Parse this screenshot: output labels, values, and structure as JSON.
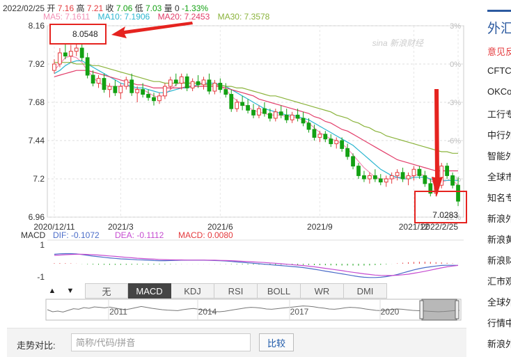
{
  "header": {
    "date": "2022/02/25",
    "open_label": "开",
    "open": "7.16",
    "high_label": "高",
    "high": "7.21",
    "close_label": "收",
    "close": "7.06",
    "low_label": "低",
    "low": "7.03",
    "volume_label": "量",
    "volume": "0",
    "change": "-1.33%"
  },
  "ma_legend": [
    {
      "label": "MA5: 7.1611",
      "color": "#f28fb5"
    },
    {
      "label": "MA10: 7.1906",
      "color": "#2bb6d0"
    },
    {
      "label": "MA20: 7.2453",
      "color": "#e23d6a"
    },
    {
      "label": "MA30: 7.3578",
      "color": "#8ab33b"
    }
  ],
  "watermark": "sina 新浪财经",
  "annotations": {
    "high": "8.0548",
    "low": "7.0283"
  },
  "macd_legend": {
    "name": "MACD",
    "dif": "DIF: -0.1072",
    "dea": "DEA: -0.1112",
    "macd": "MACD: 0.0080"
  },
  "tabs": {
    "up_arrow": "▲",
    "down_arrow": "▼",
    "items": [
      {
        "label": "无",
        "active": false
      },
      {
        "label": "MACD",
        "active": true
      },
      {
        "label": "KDJ",
        "active": false
      },
      {
        "label": "RSI",
        "active": false
      },
      {
        "label": "BOLL",
        "active": false
      },
      {
        "label": "WR",
        "active": false
      },
      {
        "label": "DMI",
        "active": false
      }
    ]
  },
  "navigator": {
    "years": [
      "2011",
      "2014",
      "2017",
      "2020"
    ]
  },
  "compare": {
    "label": "走势对比:",
    "placeholder": "简称/代码/拼音",
    "button": "比较"
  },
  "sidebar": {
    "title": "外汇",
    "items": [
      {
        "label": "意见反",
        "red": true
      },
      {
        "label": "CFTC",
        "red": false
      },
      {
        "label": "OKCo",
        "red": false
      },
      {
        "label": "工行专",
        "red": false
      },
      {
        "label": "中行外",
        "red": false
      },
      {
        "label": "智能外",
        "red": false
      },
      {
        "label": "全球市",
        "red": false
      },
      {
        "label": "知名专",
        "red": false
      },
      {
        "label": "新浪外",
        "red": false
      },
      {
        "label": "新浪黄",
        "red": false
      },
      {
        "label": "新浪财",
        "red": false
      },
      {
        "label": "汇市观",
        "red": false
      },
      {
        "label": "全球外",
        "red": false
      },
      {
        "label": "行情中",
        "red": false
      },
      {
        "label": "新浪外",
        "red": false
      }
    ]
  },
  "chart_data": {
    "type": "candlestick",
    "y_ticks": [
      8.16,
      7.92,
      7.68,
      7.44,
      7.2,
      6.96
    ],
    "ylim": [
      6.96,
      8.16
    ],
    "right_ticks": [
      "3%",
      "0%",
      "-3%",
      "-6%",
      "-9%",
      "-12%"
    ],
    "x_ticks": [
      "2020/12/11",
      "2021/3",
      "2021/6",
      "2021/9",
      "2021/12",
      "2022/2/25"
    ],
    "macd_y_ticks": [
      "1",
      "-1"
    ],
    "candles": [
      [
        7.88,
        7.95,
        7.86,
        7.92
      ],
      [
        7.92,
        8.02,
        7.9,
        7.99
      ],
      [
        7.99,
        8.05,
        7.95,
        7.97
      ],
      [
        7.97,
        8.04,
        7.93,
        8.0
      ],
      [
        8.0,
        8.06,
        7.97,
        8.02
      ],
      [
        8.02,
        8.06,
        7.94,
        7.96
      ],
      [
        7.96,
        7.99,
        7.83,
        7.85
      ],
      [
        7.85,
        7.88,
        7.78,
        7.8
      ],
      [
        7.8,
        7.85,
        7.77,
        7.83
      ],
      [
        7.83,
        7.86,
        7.74,
        7.76
      ],
      [
        7.76,
        7.8,
        7.71,
        7.78
      ],
      [
        7.78,
        7.82,
        7.72,
        7.74
      ],
      [
        7.74,
        7.8,
        7.7,
        7.78
      ],
      [
        7.78,
        7.84,
        7.76,
        7.82
      ],
      [
        7.82,
        7.86,
        7.72,
        7.74
      ],
      [
        7.74,
        7.78,
        7.68,
        7.76
      ],
      [
        7.76,
        7.8,
        7.71,
        7.73
      ],
      [
        7.73,
        7.76,
        7.69,
        7.71
      ],
      [
        7.71,
        7.74,
        7.66,
        7.69
      ],
      [
        7.69,
        7.74,
        7.67,
        7.72
      ],
      [
        7.72,
        7.8,
        7.7,
        7.78
      ],
      [
        7.78,
        7.84,
        7.76,
        7.82
      ],
      [
        7.82,
        7.86,
        7.78,
        7.8
      ],
      [
        7.8,
        7.86,
        7.76,
        7.84
      ],
      [
        7.84,
        7.86,
        7.75,
        7.77
      ],
      [
        7.77,
        7.83,
        7.75,
        7.81
      ],
      [
        7.81,
        7.85,
        7.77,
        7.79
      ],
      [
        7.79,
        7.84,
        7.76,
        7.82
      ],
      [
        7.82,
        7.86,
        7.73,
        7.75
      ],
      [
        7.75,
        7.82,
        7.73,
        7.8
      ],
      [
        7.8,
        7.83,
        7.74,
        7.76
      ],
      [
        7.76,
        7.8,
        7.71,
        7.73
      ],
      [
        7.73,
        7.76,
        7.62,
        7.64
      ],
      [
        7.64,
        7.7,
        7.62,
        7.68
      ],
      [
        7.68,
        7.72,
        7.63,
        7.66
      ],
      [
        7.66,
        7.7,
        7.61,
        7.63
      ],
      [
        7.63,
        7.67,
        7.58,
        7.6
      ],
      [
        7.6,
        7.66,
        7.58,
        7.64
      ],
      [
        7.64,
        7.68,
        7.59,
        7.61
      ],
      [
        7.61,
        7.64,
        7.56,
        7.58
      ],
      [
        7.58,
        7.64,
        7.56,
        7.62
      ],
      [
        7.62,
        7.66,
        7.58,
        7.6
      ],
      [
        7.6,
        7.64,
        7.55,
        7.57
      ],
      [
        7.57,
        7.62,
        7.55,
        7.6
      ],
      [
        7.6,
        7.64,
        7.56,
        7.58
      ],
      [
        7.58,
        7.62,
        7.53,
        7.55
      ],
      [
        7.55,
        7.58,
        7.49,
        7.51
      ],
      [
        7.51,
        7.54,
        7.44,
        7.46
      ],
      [
        7.46,
        7.5,
        7.43,
        7.48
      ],
      [
        7.48,
        7.5,
        7.43,
        7.45
      ],
      [
        7.45,
        7.48,
        7.4,
        7.42
      ],
      [
        7.42,
        7.46,
        7.39,
        7.44
      ],
      [
        7.44,
        7.46,
        7.37,
        7.39
      ],
      [
        7.39,
        7.42,
        7.32,
        7.34
      ],
      [
        7.34,
        7.36,
        7.26,
        7.28
      ],
      [
        7.28,
        7.3,
        7.2,
        7.22
      ],
      [
        7.22,
        7.25,
        7.18,
        7.2
      ],
      [
        7.2,
        7.24,
        7.17,
        7.22
      ],
      [
        7.22,
        7.26,
        7.18,
        7.2
      ],
      [
        7.2,
        7.23,
        7.16,
        7.18
      ],
      [
        7.18,
        7.22,
        7.15,
        7.2
      ],
      [
        7.2,
        7.24,
        7.17,
        7.22
      ],
      [
        7.22,
        7.26,
        7.19,
        7.24
      ],
      [
        7.24,
        7.27,
        7.18,
        7.2
      ],
      [
        7.2,
        7.24,
        7.16,
        7.22
      ],
      [
        7.22,
        7.28,
        7.19,
        7.26
      ],
      [
        7.26,
        7.28,
        7.2,
        7.22
      ],
      [
        7.22,
        7.25,
        7.15,
        7.17
      ],
      [
        7.17,
        7.2,
        7.09,
        7.11
      ],
      [
        7.11,
        7.18,
        7.09,
        7.16
      ],
      [
        7.16,
        7.3,
        7.14,
        7.28
      ],
      [
        7.28,
        7.3,
        7.2,
        7.22
      ],
      [
        7.22,
        7.24,
        7.14,
        7.16
      ],
      [
        7.16,
        7.21,
        7.03,
        7.06
      ]
    ],
    "ma_series": [
      {
        "name": "MA5",
        "values": [
          7.88,
          7.92,
          7.96,
          7.97,
          7.96,
          7.93,
          7.88,
          7.84,
          7.8,
          7.79,
          7.78,
          7.78,
          7.78,
          7.79,
          7.77,
          7.76,
          7.76,
          7.74,
          7.72,
          7.71,
          7.73,
          7.76,
          7.79,
          7.81,
          7.8,
          7.8,
          7.8,
          7.8,
          7.79,
          7.79,
          7.78,
          7.76,
          7.72,
          7.69,
          7.67,
          7.65,
          7.63,
          7.62,
          7.61,
          7.6,
          7.6,
          7.6,
          7.59,
          7.59,
          7.58,
          7.57,
          7.55,
          7.52,
          7.49,
          7.47,
          7.45,
          7.44,
          7.42,
          7.39,
          7.35,
          7.31,
          7.27,
          7.24,
          7.21,
          7.2,
          7.2,
          7.2,
          7.21,
          7.21,
          7.21,
          7.22,
          7.23,
          7.22,
          7.19,
          7.17,
          7.18,
          7.19,
          7.19,
          7.16
        ]
      },
      {
        "name": "MA10",
        "values": [
          7.86,
          7.88,
          7.91,
          7.93,
          7.94,
          7.94,
          7.92,
          7.9,
          7.88,
          7.86,
          7.84,
          7.82,
          7.8,
          7.79,
          7.78,
          7.77,
          7.77,
          7.76,
          7.75,
          7.74,
          7.74,
          7.75,
          7.76,
          7.77,
          7.77,
          7.78,
          7.79,
          7.8,
          7.8,
          7.8,
          7.79,
          7.78,
          7.76,
          7.74,
          7.72,
          7.7,
          7.68,
          7.66,
          7.64,
          7.63,
          7.62,
          7.61,
          7.6,
          7.6,
          7.59,
          7.58,
          7.57,
          7.55,
          7.53,
          7.51,
          7.49,
          7.47,
          7.45,
          7.43,
          7.41,
          7.38,
          7.35,
          7.32,
          7.29,
          7.26,
          7.24,
          7.22,
          7.21,
          7.2,
          7.2,
          7.21,
          7.21,
          7.21,
          7.2,
          7.19,
          7.19,
          7.19,
          7.19,
          7.19
        ]
      },
      {
        "name": "MA20",
        "values": [
          7.84,
          7.85,
          7.86,
          7.87,
          7.88,
          7.88,
          7.88,
          7.87,
          7.86,
          7.85,
          7.84,
          7.83,
          7.82,
          7.81,
          7.8,
          7.79,
          7.79,
          7.78,
          7.77,
          7.77,
          7.77,
          7.77,
          7.77,
          7.77,
          7.78,
          7.78,
          7.78,
          7.78,
          7.78,
          7.78,
          7.78,
          7.77,
          7.76,
          7.75,
          7.74,
          7.73,
          7.72,
          7.7,
          7.69,
          7.68,
          7.67,
          7.66,
          7.65,
          7.64,
          7.63,
          7.62,
          7.61,
          7.59,
          7.58,
          7.56,
          7.55,
          7.53,
          7.51,
          7.5,
          7.48,
          7.46,
          7.44,
          7.42,
          7.4,
          7.38,
          7.36,
          7.34,
          7.32,
          7.31,
          7.3,
          7.29,
          7.28,
          7.27,
          7.26,
          7.25,
          7.25,
          7.25,
          7.25,
          7.25
        ]
      },
      {
        "name": "MA30",
        "values": [
          7.93,
          7.93,
          7.93,
          7.93,
          7.92,
          7.92,
          7.92,
          7.91,
          7.91,
          7.9,
          7.89,
          7.88,
          7.87,
          7.86,
          7.85,
          7.84,
          7.83,
          7.82,
          7.81,
          7.81,
          7.8,
          7.8,
          7.8,
          7.8,
          7.8,
          7.8,
          7.8,
          7.79,
          7.79,
          7.79,
          7.79,
          7.78,
          7.78,
          7.77,
          7.77,
          7.76,
          7.75,
          7.74,
          7.73,
          7.72,
          7.72,
          7.71,
          7.7,
          7.69,
          7.68,
          7.67,
          7.66,
          7.65,
          7.64,
          7.63,
          7.62,
          7.6,
          7.59,
          7.58,
          7.56,
          7.55,
          7.53,
          7.52,
          7.5,
          7.49,
          7.47,
          7.46,
          7.45,
          7.44,
          7.43,
          7.42,
          7.41,
          7.4,
          7.39,
          7.38,
          7.37,
          7.37,
          7.36,
          7.36
        ]
      }
    ],
    "macd": {
      "dif": [
        0.62,
        0.65,
        0.66,
        0.66,
        0.64,
        0.6,
        0.55,
        0.5,
        0.46,
        0.42,
        0.38,
        0.35,
        0.32,
        0.3,
        0.28,
        0.26,
        0.25,
        0.23,
        0.21,
        0.2,
        0.2,
        0.21,
        0.22,
        0.23,
        0.23,
        0.23,
        0.23,
        0.23,
        0.22,
        0.21,
        0.2,
        0.18,
        0.15,
        0.12,
        0.09,
        0.06,
        0.03,
        0.0,
        -0.03,
        -0.06,
        -0.09,
        -0.12,
        -0.15,
        -0.18,
        -0.21,
        -0.25,
        -0.3,
        -0.36,
        -0.42,
        -0.48,
        -0.54,
        -0.6,
        -0.66,
        -0.72,
        -0.78,
        -0.84,
        -0.88,
        -0.9,
        -0.9,
        -0.88,
        -0.84,
        -0.78,
        -0.7,
        -0.6,
        -0.5,
        -0.4,
        -0.32,
        -0.25,
        -0.2,
        -0.15,
        -0.11,
        -0.1,
        -0.1,
        -0.11
      ],
      "dea": [
        0.55,
        0.57,
        0.59,
        0.61,
        0.62,
        0.62,
        0.61,
        0.59,
        0.57,
        0.54,
        0.51,
        0.48,
        0.45,
        0.42,
        0.39,
        0.36,
        0.34,
        0.32,
        0.3,
        0.28,
        0.27,
        0.26,
        0.25,
        0.25,
        0.24,
        0.24,
        0.24,
        0.24,
        0.23,
        0.23,
        0.22,
        0.21,
        0.2,
        0.18,
        0.16,
        0.14,
        0.12,
        0.1,
        0.08,
        0.05,
        0.03,
        0.0,
        -0.03,
        -0.06,
        -0.09,
        -0.12,
        -0.16,
        -0.2,
        -0.25,
        -0.3,
        -0.35,
        -0.4,
        -0.45,
        -0.51,
        -0.56,
        -0.61,
        -0.66,
        -0.7,
        -0.74,
        -0.76,
        -0.77,
        -0.77,
        -0.75,
        -0.72,
        -0.68,
        -0.62,
        -0.56,
        -0.49,
        -0.42,
        -0.34,
        -0.27,
        -0.2,
        -0.15,
        -0.11
      ],
      "hist": [
        0.07,
        0.08,
        0.07,
        0.05,
        0.02,
        -0.02,
        -0.06,
        -0.09,
        -0.11,
        -0.12,
        -0.13,
        -0.13,
        -0.13,
        -0.12,
        -0.11,
        -0.1,
        -0.09,
        -0.09,
        -0.09,
        -0.08,
        -0.07,
        -0.05,
        -0.03,
        -0.02,
        -0.01,
        -0.01,
        -0.01,
        -0.01,
        -0.01,
        -0.02,
        -0.02,
        -0.03,
        -0.05,
        -0.06,
        -0.07,
        -0.08,
        -0.09,
        -0.1,
        -0.11,
        -0.11,
        -0.12,
        -0.12,
        -0.12,
        -0.12,
        -0.12,
        -0.13,
        -0.14,
        -0.16,
        -0.17,
        -0.18,
        -0.19,
        -0.2,
        -0.21,
        -0.21,
        -0.22,
        -0.23,
        -0.22,
        -0.2,
        -0.16,
        -0.12,
        -0.07,
        -0.01,
        0.05,
        0.12,
        0.18,
        0.22,
        0.24,
        0.24,
        0.22,
        0.19,
        0.16,
        0.1,
        0.05,
        0.01
      ]
    },
    "navigator_series": [
      0.55,
      0.4,
      0.45,
      0.38,
      0.5,
      0.62,
      0.58,
      0.7,
      0.65,
      0.75,
      0.72,
      0.68,
      0.74,
      0.66,
      0.6,
      0.55,
      0.62,
      0.7,
      0.78,
      0.72,
      0.65,
      0.6,
      0.55,
      0.52,
      0.5,
      0.48,
      0.55,
      0.6,
      0.64,
      0.58,
      0.52,
      0.46,
      0.42,
      0.4,
      0.44,
      0.5,
      0.56,
      0.62,
      0.68,
      0.72,
      0.7,
      0.66,
      0.6,
      0.58,
      0.62,
      0.66,
      0.7,
      0.74,
      0.78,
      0.82,
      0.8,
      0.76,
      0.7,
      0.66,
      0.6,
      0.58,
      0.62,
      0.68,
      0.72,
      0.7,
      0.66,
      0.6,
      0.55,
      0.5,
      0.48,
      0.52,
      0.56,
      0.6,
      0.58,
      0.54,
      0.5,
      0.48,
      0.46,
      0.44,
      0.42,
      0.4,
      0.42,
      0.45,
      0.48,
      0.5
    ]
  }
}
